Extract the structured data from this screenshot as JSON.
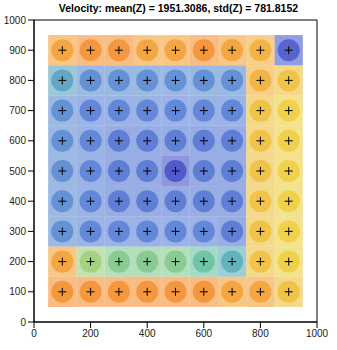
{
  "chart_data": {
    "type": "heatmap",
    "title": "Velocity: mean(Z) = 1951.3086, std(Z) = 781.8152",
    "x": [
      100,
      200,
      300,
      400,
      500,
      600,
      700,
      800,
      900
    ],
    "y": [
      100,
      200,
      300,
      400,
      500,
      600,
      700,
      800,
      900
    ],
    "cells": [
      [
        3000,
        3000,
        3000,
        3000,
        3000,
        3000,
        2900,
        2900,
        2700
      ],
      [
        2900,
        2200,
        2100,
        2100,
        2100,
        2000,
        1800,
        2700,
        2600
      ],
      [
        1500,
        1400,
        1400,
        1400,
        1400,
        1400,
        1300,
        2700,
        2600
      ],
      [
        1500,
        1400,
        1300,
        1300,
        1300,
        1300,
        1300,
        2700,
        2600
      ],
      [
        1500,
        1400,
        1300,
        1300,
        900,
        1300,
        1300,
        2700,
        2600
      ],
      [
        1500,
        1400,
        1300,
        1300,
        1300,
        1300,
        1300,
        2700,
        2600
      ],
      [
        1500,
        1400,
        1400,
        1400,
        1400,
        1400,
        1400,
        2700,
        2600
      ],
      [
        1700,
        1500,
        1500,
        1500,
        1500,
        1500,
        1500,
        2800,
        2700
      ],
      [
        2900,
        3000,
        3000,
        2900,
        2900,
        3000,
        2900,
        2800,
        1000
      ]
    ],
    "xlim": [
      0,
      1000
    ],
    "ylim": [
      0,
      1000
    ],
    "xticks": [
      0,
      200,
      400,
      600,
      800,
      1000
    ],
    "yticks": [
      0,
      100,
      200,
      300,
      400,
      500,
      600,
      700,
      800,
      900,
      1000
    ],
    "marker": "plus"
  }
}
